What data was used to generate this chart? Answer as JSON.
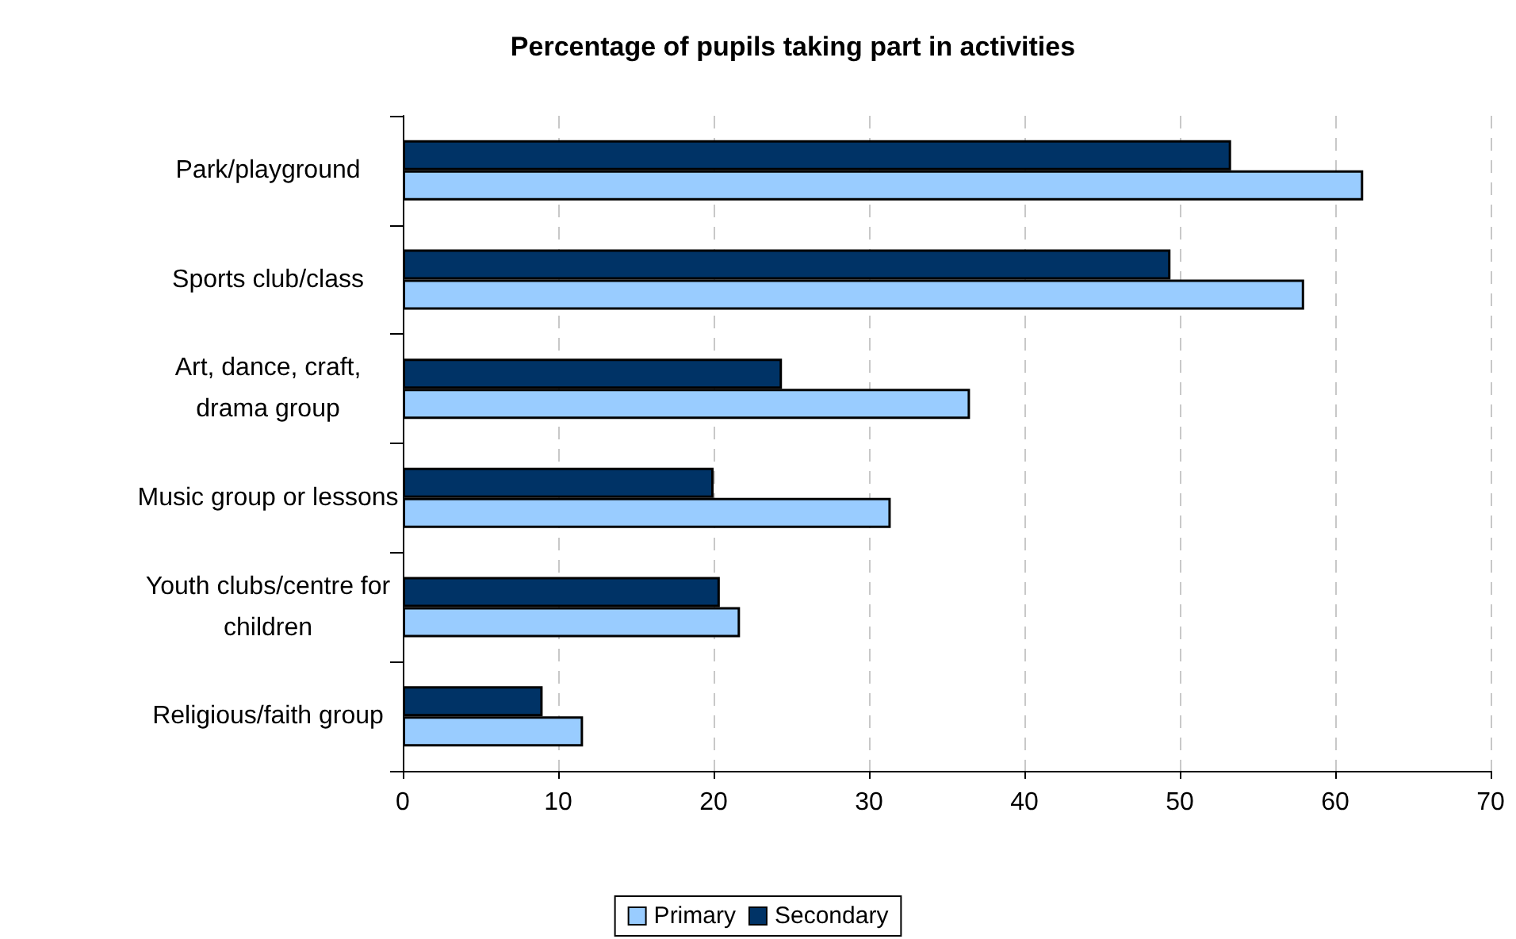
{
  "chart_data": {
    "type": "bar",
    "orientation": "horizontal",
    "title": "Percentage of pupils taking part in activities",
    "categories": [
      "Park/playground",
      "Sports club/class",
      "Art, dance, craft, drama group",
      "Music group or lessons",
      "Youth clubs/centre for children",
      "Religious/faith group"
    ],
    "series": [
      {
        "name": "Primary",
        "color": "#99ccff",
        "values": [
          61.8,
          58.0,
          36.5,
          31.4,
          21.7,
          11.6
        ]
      },
      {
        "name": "Secondary",
        "color": "#003366",
        "values": [
          53.3,
          49.4,
          24.4,
          20.0,
          20.4,
          9.0
        ]
      }
    ],
    "xlim": [
      0,
      70
    ],
    "xticks": [
      0,
      10,
      20,
      30,
      40,
      50,
      60,
      70
    ],
    "grid": "x",
    "legend": "bottom"
  }
}
